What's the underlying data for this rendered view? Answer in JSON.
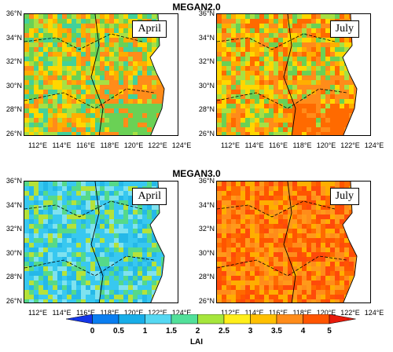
{
  "sections": [
    {
      "title": "MEGAN2.0",
      "panels": [
        {
          "label": "April",
          "palette": [
            "#ffd700",
            "#a8e043",
            "#6ad155",
            "#ff8c1a",
            "#ffae00",
            "#42d19a"
          ]
        },
        {
          "label": "July",
          "palette": [
            "#ffd700",
            "#a8e043",
            "#ff6a00",
            "#ff8c1a",
            "#ffae00",
            "#6ad155"
          ]
        }
      ]
    },
    {
      "title": "MEGAN3.0",
      "panels": [
        {
          "label": "April",
          "palette": [
            "#38c8f0",
            "#25b8e8",
            "#7fe2ef",
            "#38c8f0",
            "#55d98a",
            "#b5e23a"
          ]
        },
        {
          "label": "July",
          "palette": [
            "#ff5500",
            "#ff6a00",
            "#ff8c1a",
            "#ffae00",
            "#ff4a0a",
            "#ff9a1a"
          ]
        }
      ]
    }
  ],
  "lat_labels": [
    "36°N",
    "34°N",
    "32°N",
    "30°N",
    "28°N",
    "26°N"
  ],
  "lon_labels": [
    "112°E",
    "114°E",
    "116°E",
    "118°E",
    "120°E",
    "122°E",
    "124°E"
  ],
  "colorbar": {
    "title": "LAI",
    "labels": [
      "0",
      "0.5",
      "1",
      "1.5",
      "2",
      "2.5",
      "3",
      "3.5",
      "4",
      "5"
    ],
    "colors": [
      "#1436e8",
      "#0a7ef0",
      "#18aee8",
      "#56d8f2",
      "#52e09a",
      "#a6e63c",
      "#ffee1a",
      "#ffc000",
      "#ff8c1a",
      "#ff5500",
      "#e81a0a"
    ]
  }
}
